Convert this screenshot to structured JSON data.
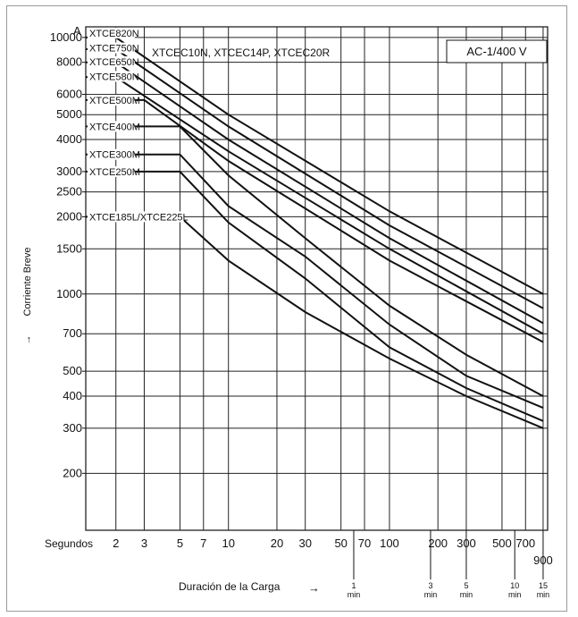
{
  "chart_data": {
    "type": "line",
    "title": "AC-1/400 V",
    "xlabel": "Duración de la Carga",
    "ylabel": "Corriente Breve",
    "y_unit": "A",
    "x_scale": "log",
    "y_scale": "log",
    "xlim": [
      1.3,
      960
    ],
    "ylim": [
      120,
      11000
    ],
    "x_ticks": [
      {
        "value": 2,
        "label": "2"
      },
      {
        "value": 3,
        "label": "3"
      },
      {
        "value": 5,
        "label": "5"
      },
      {
        "value": 7,
        "label": "7"
      },
      {
        "value": 10,
        "label": "10"
      },
      {
        "value": 20,
        "label": "20"
      },
      {
        "value": 30,
        "label": "30"
      },
      {
        "value": 50,
        "label": "50"
      },
      {
        "value": 70,
        "label": "70"
      },
      {
        "value": 100,
        "label": "100"
      },
      {
        "value": 200,
        "label": "200"
      },
      {
        "value": 300,
        "label": "300"
      },
      {
        "value": 500,
        "label": "500"
      },
      {
        "value": 700,
        "label": "700"
      },
      {
        "value": 900,
        "label": "900"
      }
    ],
    "x_tick_prefix": "Segundos",
    "x_min_ticks": [
      {
        "value": 60,
        "num": "1",
        "unit": "min"
      },
      {
        "value": 180,
        "num": "3",
        "unit": "min"
      },
      {
        "value": 300,
        "num": "5",
        "unit": "min"
      },
      {
        "value": 600,
        "num": "10",
        "unit": "min"
      },
      {
        "value": 900,
        "num": "15",
        "unit": "min"
      }
    ],
    "y_ticks": [
      10000,
      8000,
      6000,
      5000,
      4000,
      3000,
      2500,
      2000,
      1500,
      1000,
      700,
      500,
      400,
      300,
      200
    ],
    "extra_label": "XTCEC10N, XTCEC14P, XTCEC20R",
    "series": [
      {
        "name": "XTCE820N",
        "points": [
          [
            1.3,
            10000
          ],
          [
            2,
            10000
          ],
          [
            10,
            5000
          ],
          [
            100,
            2100
          ],
          [
            900,
            1000
          ]
        ]
      },
      {
        "name": "XTCE750N",
        "points": [
          [
            1.3,
            9000
          ],
          [
            2,
            9000
          ],
          [
            10,
            4500
          ],
          [
            100,
            1850
          ],
          [
            900,
            880
          ]
        ]
      },
      {
        "name": "XTCE650N",
        "points": [
          [
            1.3,
            8000
          ],
          [
            2,
            8000
          ],
          [
            10,
            4000
          ],
          [
            100,
            1650
          ],
          [
            900,
            770
          ]
        ]
      },
      {
        "name": "XTCE580N",
        "points": [
          [
            1.3,
            7000
          ],
          [
            2,
            7000
          ],
          [
            10,
            3600
          ],
          [
            100,
            1500
          ],
          [
            900,
            700
          ]
        ]
      },
      {
        "name": "XTCE500M",
        "points": [
          [
            1.3,
            5700
          ],
          [
            3,
            5700
          ],
          [
            10,
            3300
          ],
          [
            100,
            1350
          ],
          [
            900,
            650
          ]
        ]
      },
      {
        "name": "XTCE400M",
        "points": [
          [
            1.3,
            4500
          ],
          [
            5,
            4500
          ],
          [
            10,
            2900
          ],
          [
            30,
            1650
          ],
          [
            100,
            900
          ],
          [
            300,
            580
          ],
          [
            900,
            400
          ]
        ]
      },
      {
        "name": "XTCE300M",
        "points": [
          [
            1.3,
            3500
          ],
          [
            5,
            3500
          ],
          [
            10,
            2200
          ],
          [
            30,
            1400
          ],
          [
            100,
            760
          ],
          [
            300,
            480
          ],
          [
            900,
            360
          ]
        ]
      },
      {
        "name": "XTCE250M",
        "points": [
          [
            1.3,
            3000
          ],
          [
            5,
            3000
          ],
          [
            10,
            1900
          ],
          [
            30,
            1150
          ],
          [
            100,
            620
          ],
          [
            300,
            430
          ],
          [
            900,
            320
          ]
        ]
      },
      {
        "name": "XTCE185L/XTCE225L",
        "points": [
          [
            1.3,
            2000
          ],
          [
            5,
            2000
          ],
          [
            10,
            1350
          ],
          [
            30,
            850
          ],
          [
            100,
            560
          ],
          [
            300,
            400
          ],
          [
            900,
            300
          ]
        ]
      }
    ]
  }
}
